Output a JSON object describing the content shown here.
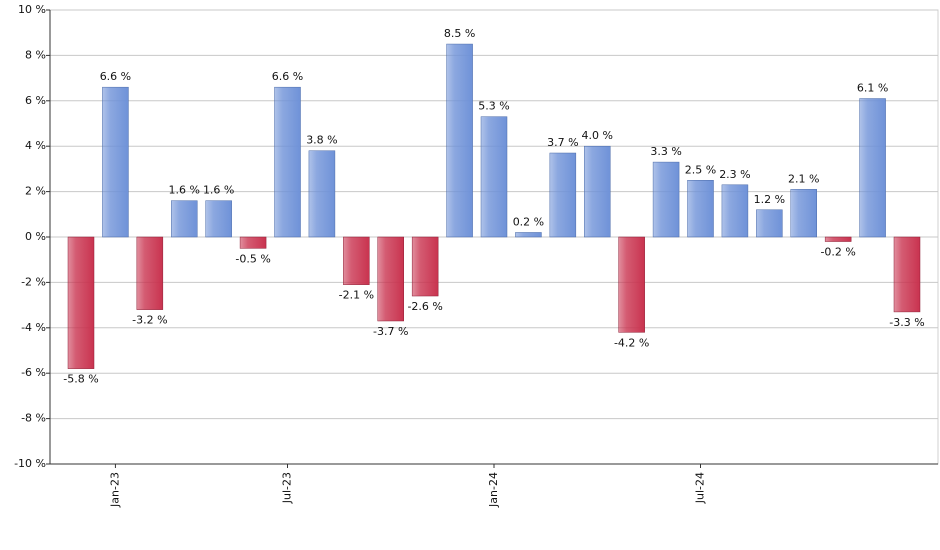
{
  "chart_data": {
    "type": "bar",
    "categories": [
      null,
      "Jan-23",
      null,
      null,
      null,
      null,
      "Jul-23",
      null,
      null,
      null,
      null,
      null,
      "Jan-24",
      null,
      null,
      null,
      null,
      null,
      "Jul-24",
      null,
      null,
      null,
      null,
      null,
      null
    ],
    "values": [
      -5.8,
      6.6,
      -3.2,
      1.6,
      1.6,
      -0.5,
      6.6,
      3.8,
      -2.1,
      -3.7,
      -2.6,
      8.5,
      5.3,
      0.2,
      3.7,
      4.0,
      -4.2,
      3.3,
      2.5,
      2.3,
      1.2,
      2.1,
      -0.2,
      6.1,
      -3.3
    ],
    "value_labels": [
      "-5.8 %",
      "6.6 %",
      "-3.2 %",
      "1.6 %",
      "1.6 %",
      "-0.5 %",
      "6.6 %",
      "3.8 %",
      "-2.1 %",
      "-3.7 %",
      "-2.6 %",
      "8.5 %",
      "5.3 %",
      "0.2 %",
      "3.7 %",
      "4.0 %",
      "-4.2 %",
      "3.3 %",
      "2.5 %",
      "2.3 %",
      "1.2 %",
      "2.1 %",
      "-0.2 %",
      "6.1 %",
      "-3.3 %"
    ],
    "positive_color": "#6f92d8",
    "negative_color": "#c9334f",
    "ylim": [
      -10,
      10
    ],
    "yticks": [
      {
        "value": -10,
        "label": "-10 %"
      },
      {
        "value": -8,
        "label": "-8 %"
      },
      {
        "value": -6,
        "label": "-6 %"
      },
      {
        "value": -4,
        "label": "-4 %"
      },
      {
        "value": -2,
        "label": "-2 %"
      },
      {
        "value": 0,
        "label": "0 %"
      },
      {
        "value": 2,
        "label": "2 %"
      },
      {
        "value": 4,
        "label": "4 %"
      },
      {
        "value": 6,
        "label": "6 %"
      },
      {
        "value": 8,
        "label": "8 %"
      },
      {
        "value": 10,
        "label": "10 %"
      }
    ],
    "grid": true
  }
}
